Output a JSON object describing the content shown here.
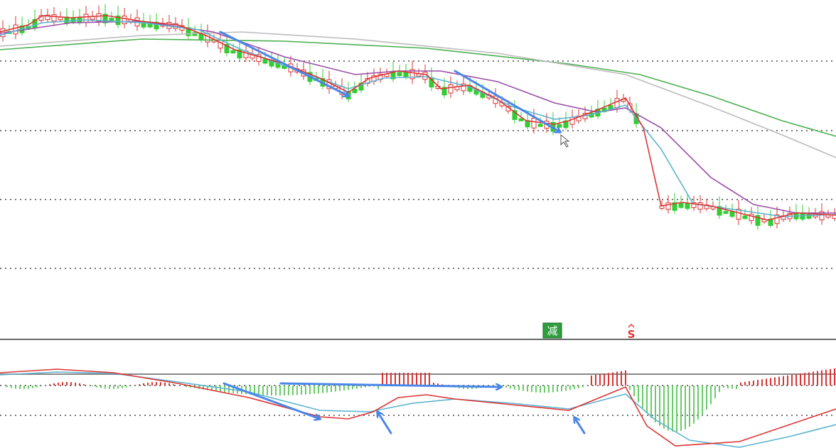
{
  "signals": {
    "reduce_label": "减",
    "sell_label": "S"
  }
}
